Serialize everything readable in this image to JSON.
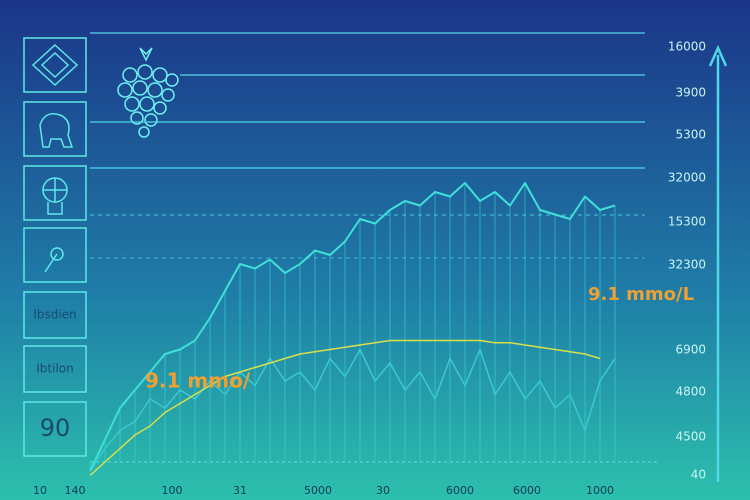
{
  "chart_data": {
    "type": "line",
    "sidebar_labels": [
      "Ibsdien",
      "Ibtilon",
      "90"
    ],
    "annotations": [
      "9.1 mmo/",
      "9.1 mmo/L"
    ],
    "right_labels": [
      "16000",
      "3900",
      "5300",
      "32000",
      "15300",
      "32300",
      "6900",
      "4800",
      "4500",
      "40"
    ],
    "x_labels": [
      "10",
      "140",
      "100",
      "31",
      "5000",
      "30",
      "6000",
      "6000",
      "1000"
    ],
    "ylim": [
      0,
      100
    ],
    "series": [
      {
        "color": "#3fe0d8",
        "values": [
          2,
          9,
          16,
          20,
          24,
          28,
          29,
          31,
          36,
          42,
          48,
          47,
          49,
          46,
          48,
          51,
          50,
          53,
          58,
          57,
          60,
          62,
          61,
          64,
          63,
          66,
          62,
          64,
          61,
          66,
          60,
          59,
          58,
          63,
          60,
          61
        ]
      },
      {
        "color": "#3cc8d0",
        "values": [
          2,
          7,
          11,
          13,
          18,
          16,
          20,
          18,
          22,
          19,
          24,
          21,
          27,
          22,
          24,
          20,
          27,
          23,
          29,
          22,
          26,
          20,
          24,
          18,
          27,
          21,
          29,
          19,
          24,
          18,
          22,
          16,
          19,
          11,
          22,
          27
        ]
      },
      {
        "color": "#d8e04a",
        "values": [
          1,
          4,
          7,
          10,
          12,
          15,
          17,
          19,
          21,
          23,
          24,
          25,
          26,
          27,
          28,
          28.5,
          29,
          29.5,
          30,
          30.5,
          31,
          31,
          31,
          31,
          31,
          31,
          31,
          30.5,
          30.5,
          30,
          29.5,
          29,
          28.5,
          28,
          27,
          null
        ]
      }
    ]
  }
}
